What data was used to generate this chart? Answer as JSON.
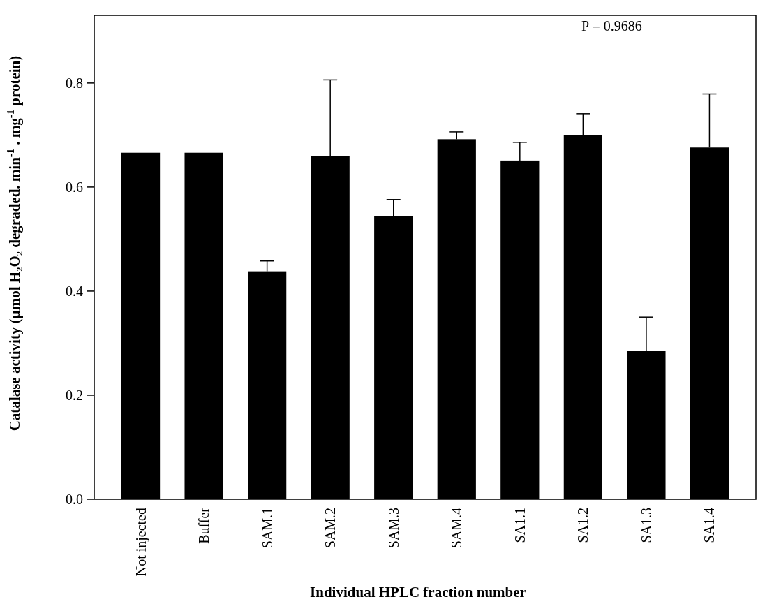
{
  "chart_data": {
    "type": "bar",
    "xlabel": "Individual HPLC fraction number",
    "ylabel": "Catalase activity (µmol H₂O₂ degraded. min$^{-1}$ . mg$^{-1}$ protein)",
    "categories": [
      "Not injected",
      "Buffer",
      "SAM.1",
      "SAM.2",
      "SAM.3",
      "SAM.4",
      "SA1.1",
      "SA1.2",
      "SA1.3",
      "SA1.4"
    ],
    "values": [
      0.666,
      0.666,
      0.438,
      0.659,
      0.544,
      0.692,
      0.651,
      0.7,
      0.285,
      0.676
    ],
    "errors": [
      null,
      null,
      [
        0.438,
        0.458
      ],
      [
        0.659,
        0.806
      ],
      [
        0.544,
        0.576
      ],
      [
        0.692,
        0.706
      ],
      [
        0.651,
        0.686
      ],
      [
        0.7,
        0.741
      ],
      [
        0.285,
        0.35
      ],
      [
        0.676,
        0.779
      ]
    ],
    "color": "#000000",
    "ylim": [
      0,
      0.93
    ],
    "yticks": [
      "0.0",
      0.2,
      0.4,
      0.6,
      0.8
    ],
    "annotations": [
      "P = 0.9686"
    ],
    "grid": false
  }
}
